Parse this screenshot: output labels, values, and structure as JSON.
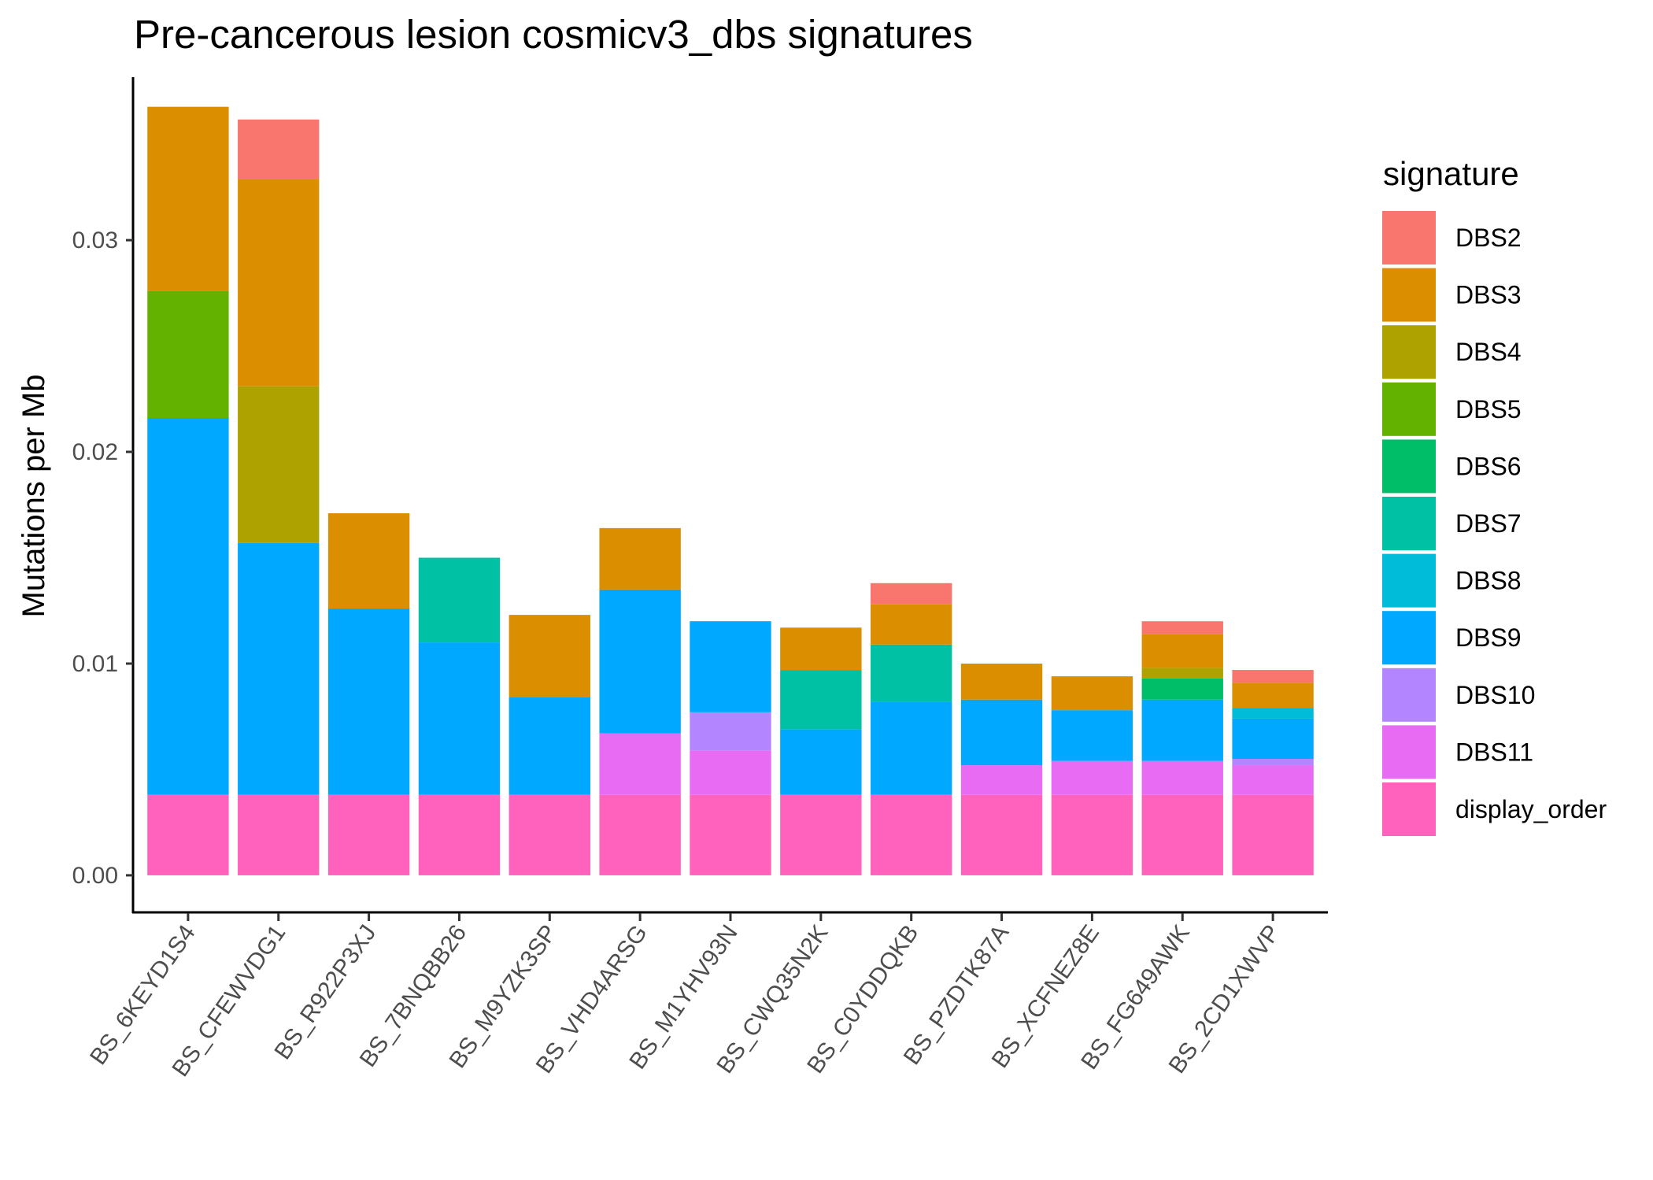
{
  "chart_data": {
    "type": "bar",
    "stacked": true,
    "title": "Pre-cancerous lesion cosmicv3_dbs signatures",
    "ylabel": "Mutations per Mb",
    "xlabel": "",
    "ylim": [
      -0.00175,
      0.0377
    ],
    "yticks": [
      0.0,
      0.01,
      0.02,
      0.03
    ],
    "ytick_labels": [
      "0.00",
      "0.01",
      "0.02",
      "0.03"
    ],
    "grid": false,
    "legend_title": "signature",
    "legend_position": "right",
    "categories": [
      "BS_6KEYD1S4",
      "BS_CFEWVDG1",
      "BS_R922P3XJ",
      "BS_7BNQBB26",
      "BS_M9YZK3SP",
      "BS_VHD4ARSG",
      "BS_M1YHV93N",
      "BS_CWQ35N2K",
      "BS_C0YDDQKB",
      "BS_PZDTK87A",
      "BS_XCFNEZ8E",
      "BS_FG649AWK",
      "BS_2CD1XWVP"
    ],
    "series": [
      {
        "name": "display_order",
        "color": "#FF62BC",
        "values": [
          0.0038,
          0.0038,
          0.0038,
          0.0038,
          0.0038,
          0.0038,
          0.0038,
          0.0038,
          0.0038,
          0.0038,
          0.0038,
          0.0038,
          0.0038
        ]
      },
      {
        "name": "DBS11",
        "color": "#E76BF3",
        "values": [
          0,
          0,
          0,
          0,
          0,
          0.0029,
          0.0021,
          0,
          0,
          0.0014,
          0.0016,
          0.0016,
          0.0014
        ]
      },
      {
        "name": "DBS10",
        "color": "#B385FF",
        "values": [
          0,
          0,
          0,
          0,
          0,
          0,
          0.0018,
          0,
          0,
          0,
          0,
          0,
          0.0003
        ]
      },
      {
        "name": "DBS9",
        "color": "#00A9FF",
        "values": [
          0.0178,
          0.0119,
          0.0088,
          0.0072,
          0.0046,
          0.0068,
          0.0043,
          0.0031,
          0.0044,
          0.0031,
          0.0024,
          0.0029,
          0.0019
        ]
      },
      {
        "name": "DBS8",
        "color": "#00BCD8",
        "values": [
          0,
          0,
          0,
          0,
          0,
          0,
          0,
          0,
          0,
          0,
          0,
          0,
          0.0005
        ]
      },
      {
        "name": "DBS7",
        "color": "#00C1A3",
        "values": [
          0,
          0,
          0,
          0.004,
          0,
          0,
          0,
          0.0028,
          0.0027,
          0,
          0,
          0,
          0
        ]
      },
      {
        "name": "DBS6",
        "color": "#00BE67",
        "values": [
          0,
          0,
          0,
          0,
          0,
          0,
          0,
          0,
          0,
          0,
          0,
          0.001,
          0
        ]
      },
      {
        "name": "DBS5",
        "color": "#64B200",
        "values": [
          0.006,
          0,
          0,
          0,
          0,
          0,
          0,
          0,
          0,
          0,
          0,
          0,
          0
        ]
      },
      {
        "name": "DBS4",
        "color": "#AEA200",
        "values": [
          0,
          0.0074,
          0,
          0,
          0,
          0,
          0,
          0,
          0,
          0,
          0,
          0.0005,
          0
        ]
      },
      {
        "name": "DBS3",
        "color": "#DB8E00",
        "values": [
          0.0087,
          0.0098,
          0.0045,
          0,
          0.0039,
          0.0029,
          0,
          0.002,
          0.0019,
          0.0017,
          0.0016,
          0.0016,
          0.0012
        ]
      },
      {
        "name": "DBS2",
        "color": "#F8766D",
        "values": [
          0,
          0.0028,
          0,
          0,
          0,
          0,
          0,
          0,
          0.001,
          0,
          0,
          0.0006,
          0.0006
        ]
      }
    ],
    "legend_order": [
      "DBS2",
      "DBS3",
      "DBS4",
      "DBS5",
      "DBS6",
      "DBS7",
      "DBS8",
      "DBS9",
      "DBS10",
      "DBS11",
      "display_order"
    ]
  }
}
